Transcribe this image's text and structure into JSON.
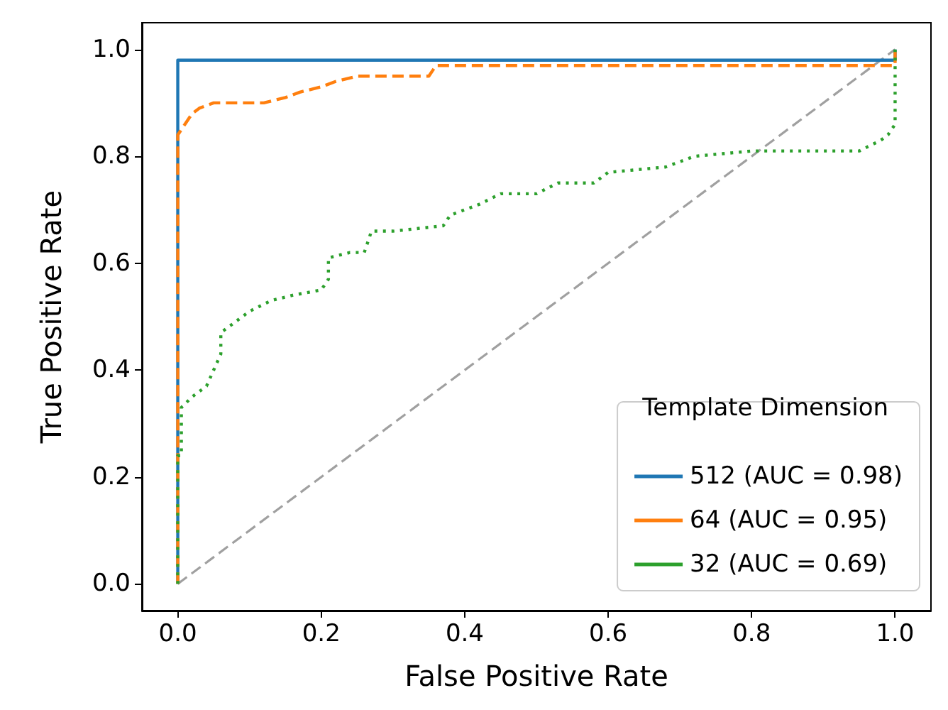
{
  "chart_data": {
    "type": "line",
    "xlabel": "False Positive Rate",
    "ylabel": "True Positive Rate",
    "legend_title": "Template Dimension",
    "xlim": [
      -0.05,
      1.05
    ],
    "ylim": [
      -0.05,
      1.05
    ],
    "xticks": [
      {
        "value": 0,
        "label": "0.0"
      },
      0.2,
      0.4,
      0.6,
      0.8,
      {
        "value": 1,
        "label": "1.0"
      }
    ],
    "yticks": [
      {
        "value": 0,
        "label": "0.0"
      },
      0.2,
      0.4,
      0.6,
      0.8,
      {
        "value": 1,
        "label": "1.0"
      }
    ],
    "legend": "bottom right",
    "marker": "none",
    "series": [
      {
        "name": "512 (AUC = 0.98)",
        "color": "#1f77b4",
        "line_style": "solid",
        "x": [
          0,
          0,
          1,
          1
        ],
        "values": [
          0,
          0.98,
          0.98,
          1
        ]
      },
      {
        "name": "64 (AUC = 0.95)",
        "color": "#ff7f0e",
        "line_style": "dashed",
        "x": [
          0,
          0,
          0.01,
          0.02,
          0.03,
          0.05,
          0.12,
          0.15,
          0.17,
          0.2,
          0.22,
          0.25,
          0.35,
          0.36,
          1,
          1
        ],
        "values": [
          0,
          0.84,
          0.86,
          0.88,
          0.89,
          0.9,
          0.9,
          0.91,
          0.92,
          0.93,
          0.94,
          0.95,
          0.95,
          0.97,
          0.97,
          1
        ]
      },
      {
        "name": "32 (AUC = 0.69)",
        "color": "#2ca02c",
        "line_style": "dotted",
        "x": [
          0,
          0,
          0.005,
          0.005,
          0.02,
          0.04,
          0.05,
          0.06,
          0.06,
          0.08,
          0.1,
          0.13,
          0.16,
          0.2,
          0.21,
          0.21,
          0.24,
          0.26,
          0.27,
          0.3,
          0.37,
          0.38,
          0.42,
          0.45,
          0.5,
          0.53,
          0.58,
          0.6,
          0.68,
          0.72,
          0.8,
          0.95,
          0.98,
          0.99,
          1,
          1
        ],
        "values": [
          0,
          0.24,
          0.24,
          0.33,
          0.35,
          0.37,
          0.4,
          0.43,
          0.47,
          0.49,
          0.51,
          0.53,
          0.54,
          0.55,
          0.57,
          0.61,
          0.62,
          0.62,
          0.66,
          0.66,
          0.67,
          0.69,
          0.71,
          0.73,
          0.73,
          0.75,
          0.75,
          0.77,
          0.78,
          0.8,
          0.81,
          0.81,
          0.83,
          0.84,
          0.86,
          1
        ]
      },
      {
        "color": "#a0a0a0",
        "line_style": "dashed",
        "x": [
          0,
          1
        ],
        "values": [
          0,
          1
        ]
      }
    ]
  }
}
